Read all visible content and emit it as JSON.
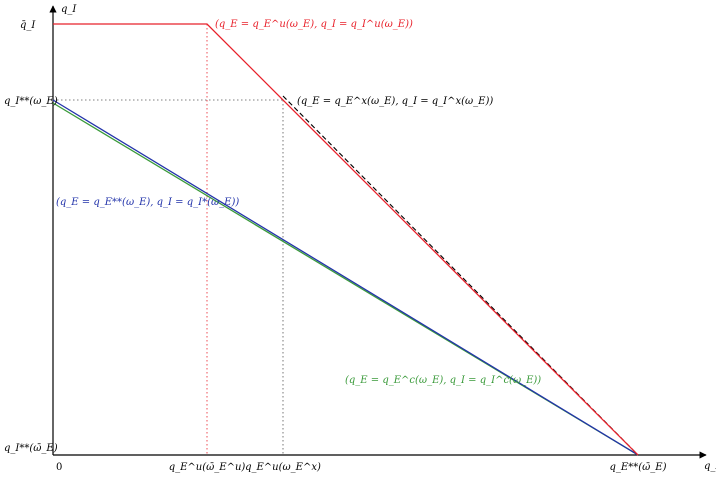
{
  "axes": {
    "x_label": "q_E",
    "y_label": "q_I",
    "origin_label": "0"
  },
  "y_ticks": {
    "top": "q̄_I",
    "middle": "q_I**(ω_E)",
    "bottom": "q_I**(ω̄_E)"
  },
  "x_ticks": {
    "first": "q_E^u(ω̄_E^u)",
    "second": "q_E^u(ω_E^x)",
    "third": "q_E**(ω̄_E)"
  },
  "curves": {
    "red": {
      "label": "(q_E = q_E^u(ω_E), q_I = q_I^u(ω_E))",
      "color": "#e8202a"
    },
    "black_dashed": {
      "label": "(q_E = q_E^x(ω_E), q_I = q_I^x(ω_E))",
      "color": "#000000"
    },
    "blue": {
      "label": "(q_E = q_E**(ω_E), q_I = q_I*(ω_E))",
      "color": "#2233aa"
    },
    "green": {
      "label": "(q_E = q_E^c(ω_E), q_I = q_I^c(ω_E))",
      "color": "#3a9a3a"
    }
  }
}
